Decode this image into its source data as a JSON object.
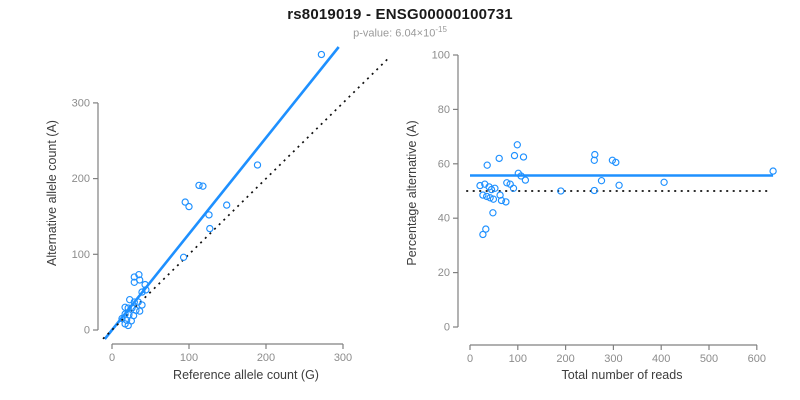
{
  "header": {
    "title": "rs8019019 - ENSG00000100731",
    "subtitle_base": "p-value: 6.04×10",
    "subtitle_exponent": "-15"
  },
  "colors": {
    "accent_blue": "#1e90ff",
    "line_black": "#111111",
    "axis_gray": "#808080",
    "tick_label_gray": "#8c8c8c",
    "text_dark": "#3d3d3d"
  },
  "chart_data": [
    {
      "type": "scatter",
      "xlabel": "Reference allele count (G)",
      "ylabel": "Alternative allele count (A)",
      "xlim": [
        0,
        300
      ],
      "ylim": [
        0,
        300
      ],
      "xticks": [
        0,
        100,
        200,
        300
      ],
      "yticks": [
        0,
        100,
        200,
        300
      ],
      "grid": false,
      "legend": "none",
      "points": [
        [
          272,
          364
        ],
        [
          189,
          218
        ],
        [
          113,
          191
        ],
        [
          118,
          190
        ],
        [
          149,
          165
        ],
        [
          95,
          169
        ],
        [
          100,
          163
        ],
        [
          126,
          152
        ],
        [
          127,
          134
        ],
        [
          93,
          96
        ],
        [
          35,
          73
        ],
        [
          29,
          70
        ],
        [
          36,
          66
        ],
        [
          29,
          63
        ],
        [
          43,
          60
        ],
        [
          44,
          53
        ],
        [
          39,
          50
        ],
        [
          23,
          40
        ],
        [
          29,
          37
        ],
        [
          34,
          37
        ],
        [
          39,
          33
        ],
        [
          17,
          30
        ],
        [
          21,
          29
        ],
        [
          26,
          29
        ],
        [
          31,
          26
        ],
        [
          36,
          25
        ],
        [
          17,
          21
        ],
        [
          22,
          20
        ],
        [
          28,
          19
        ],
        [
          13,
          15
        ],
        [
          19,
          13
        ],
        [
          25,
          12
        ],
        [
          17,
          8
        ],
        [
          21,
          6
        ]
      ],
      "lines": [
        {
          "name": "fit-line",
          "slope": 1.27,
          "intercept": 0,
          "style": "solid",
          "color_key": "blue"
        },
        {
          "name": "identity-line",
          "slope": 1,
          "intercept": 0,
          "style": "dotted",
          "color_key": "black"
        }
      ]
    },
    {
      "type": "scatter",
      "xlabel": "Total number of reads",
      "ylabel": "Percentage alternative (A)",
      "xlim": [
        0,
        600
      ],
      "ylim": [
        0,
        100
      ],
      "xticks": [
        0,
        100,
        200,
        300,
        400,
        500,
        600
      ],
      "yticks": [
        0,
        20,
        40,
        60,
        80,
        100
      ],
      "grid": false,
      "legend": "none",
      "points": [
        [
          99,
          67
        ],
        [
          93,
          63
        ],
        [
          112,
          62.5
        ],
        [
          61,
          62
        ],
        [
          36,
          59.5
        ],
        [
          261,
          63.4
        ],
        [
          260,
          61.3
        ],
        [
          298,
          61.3
        ],
        [
          305,
          60.5
        ],
        [
          101,
          56.5
        ],
        [
          107,
          55.5
        ],
        [
          116,
          54
        ],
        [
          21,
          52
        ],
        [
          31,
          52.5
        ],
        [
          40,
          51.5
        ],
        [
          45,
          50.5
        ],
        [
          52,
          51
        ],
        [
          77,
          53
        ],
        [
          84,
          52.5
        ],
        [
          91,
          51
        ],
        [
          27,
          48.5
        ],
        [
          35,
          48
        ],
        [
          42,
          47.5
        ],
        [
          49,
          47
        ],
        [
          63,
          48.5
        ],
        [
          66,
          46.5
        ],
        [
          75,
          46
        ],
        [
          48,
          42
        ],
        [
          33,
          36
        ],
        [
          27,
          34
        ],
        [
          190,
          50
        ],
        [
          260,
          50.2
        ],
        [
          275,
          53.8
        ],
        [
          312,
          52.1
        ],
        [
          406,
          53.2
        ],
        [
          634,
          57.3
        ]
      ],
      "lines": [
        {
          "name": "mean-line",
          "y": 55.7,
          "x_range": [
            0,
            634
          ],
          "style": "solid",
          "color_key": "blue"
        },
        {
          "name": "null-line",
          "y": 50,
          "x_range": [
            -8,
            622
          ],
          "style": "dotted",
          "color_key": "black"
        }
      ]
    }
  ]
}
